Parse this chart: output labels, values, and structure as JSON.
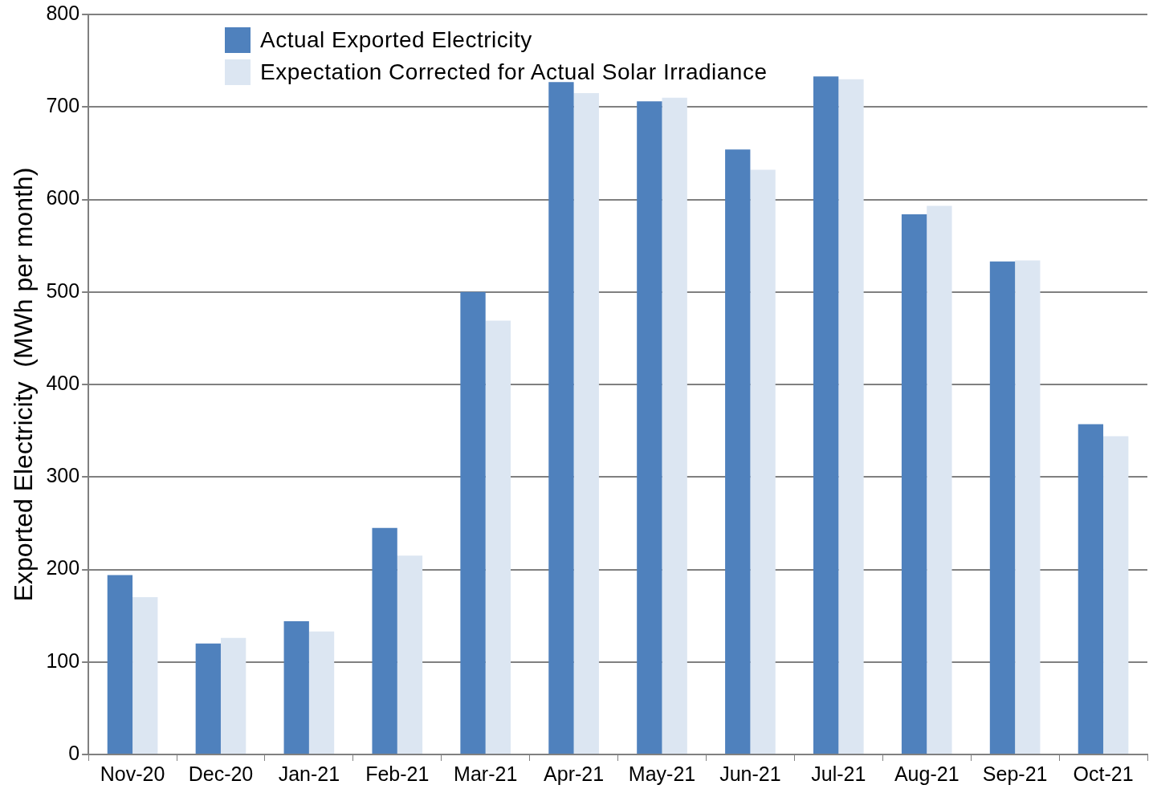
{
  "chart_data": {
    "type": "bar",
    "ylabel": "Exported Electricity  (MWh per month)",
    "categories": [
      "Nov-20",
      "Dec-20",
      "Jan-21",
      "Feb-21",
      "Mar-21",
      "Apr-21",
      "May-21",
      "Jun-21",
      "Jul-21",
      "Aug-21",
      "Sep-21",
      "Oct-21"
    ],
    "series": [
      {
        "name": "Actual Exported Electricity",
        "color": "#4f81bd",
        "values": [
          194,
          120,
          144,
          245,
          500,
          727,
          706,
          654,
          733,
          584,
          533,
          357
        ]
      },
      {
        "name": "Expectation Corrected for Actual Solar Irradiance",
        "color": "#dce6f2",
        "values": [
          170,
          126,
          133,
          215,
          469,
          715,
          710,
          632,
          730,
          593,
          534,
          344
        ]
      }
    ],
    "ylim": [
      0,
      800
    ],
    "yticks": [
      0,
      100,
      200,
      300,
      400,
      500,
      600,
      700,
      800
    ],
    "grid": "y",
    "legend": "top left"
  }
}
